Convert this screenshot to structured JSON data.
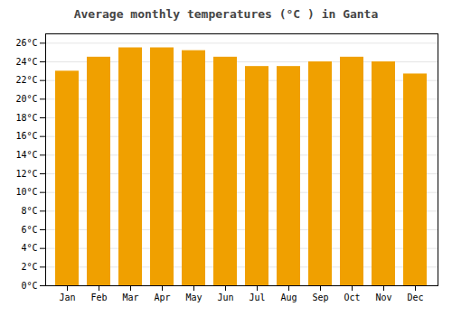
{
  "chart_data": {
    "type": "bar",
    "title": "Average monthly temperatures (°C ) in Ganta",
    "categories": [
      "Jan",
      "Feb",
      "Mar",
      "Apr",
      "May",
      "Jun",
      "Jul",
      "Aug",
      "Sep",
      "Oct",
      "Nov",
      "Dec"
    ],
    "values": [
      23.0,
      24.5,
      25.5,
      25.5,
      25.2,
      24.5,
      23.5,
      23.5,
      24.0,
      24.5,
      24.0,
      22.7
    ],
    "color": "#F0A000",
    "ylim": [
      0,
      27
    ],
    "yticks": [
      {
        "value": 0,
        "label": "0°C"
      },
      {
        "value": 2,
        "label": "2°C"
      },
      {
        "value": 4,
        "label": "4°C"
      },
      {
        "value": 6,
        "label": "6°C"
      },
      {
        "value": 8,
        "label": "8°C"
      },
      {
        "value": 10,
        "label": "10°C"
      },
      {
        "value": 12,
        "label": "12°C"
      },
      {
        "value": 14,
        "label": "14°C"
      },
      {
        "value": 16,
        "label": "16°C"
      },
      {
        "value": 18,
        "label": "18°C"
      },
      {
        "value": 20,
        "label": "20°C"
      },
      {
        "value": 22,
        "label": "22°C"
      },
      {
        "value": 24,
        "label": "24°C"
      },
      {
        "value": 26,
        "label": "26°C"
      }
    ],
    "grid": true
  }
}
